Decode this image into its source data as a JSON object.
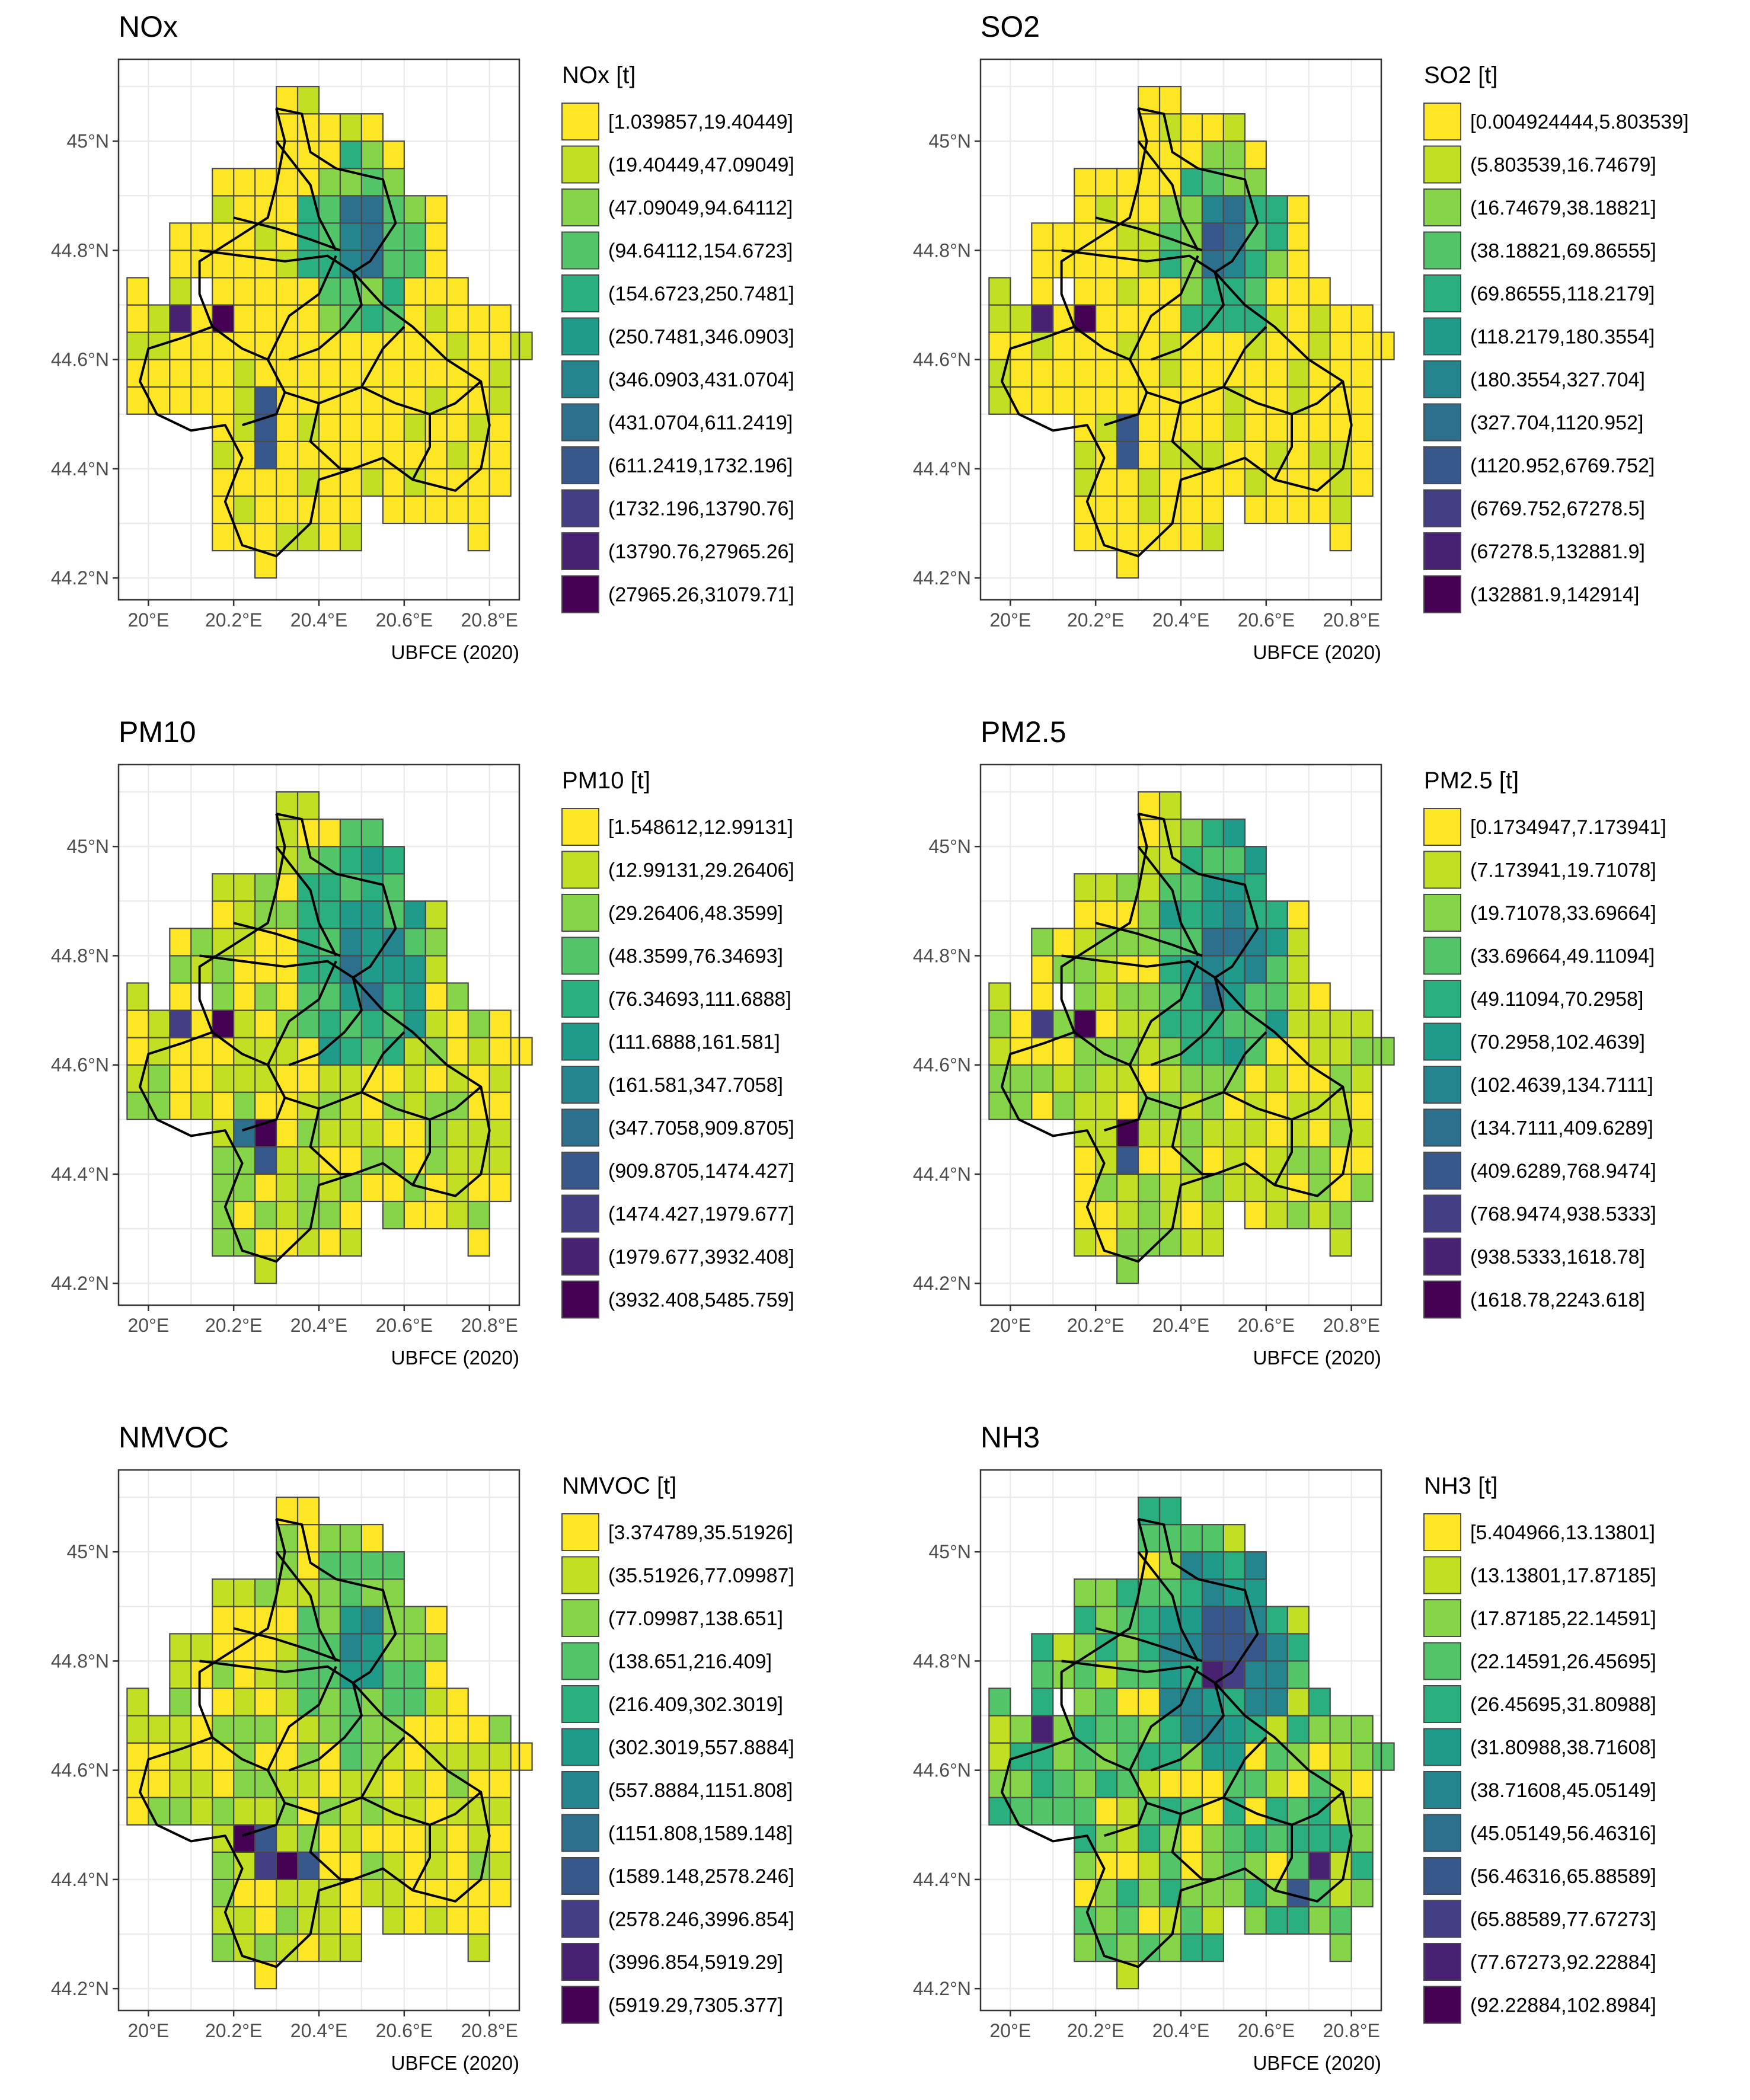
{
  "caption": "UBFCE (2020)",
  "axes": {
    "x_ticks": [
      "20°E",
      "20.2°E",
      "20.4°E",
      "20.6°E",
      "20.8°E"
    ],
    "y_ticks": [
      "45°N",
      "44.8°N",
      "44.6°N",
      "44.4°N",
      "44.2°N"
    ],
    "x_tick_values": [
      20.0,
      20.2,
      20.4,
      20.6,
      20.8
    ],
    "y_tick_values": [
      45.0,
      44.8,
      44.6,
      44.4,
      44.2
    ],
    "lon_range": [
      19.93,
      20.87
    ],
    "lat_range": [
      44.16,
      45.15
    ],
    "grid": true
  },
  "colors": [
    "#fde725",
    "#c2df23",
    "#86d549",
    "#52c569",
    "#2ab07f",
    "#1e9b8a",
    "#25858e",
    "#2d708e",
    "#38588c",
    "#433e85",
    "#482173",
    "#440154"
  ],
  "panels": [
    {
      "id": "nox",
      "title": "NOx",
      "legend_title": "NOx [t]",
      "legend": [
        "[1.039857,19.40449]",
        "(19.40449,47.09049]",
        "(47.09049,94.64112]",
        "(94.64112,154.6723]",
        "(154.6723,250.7481]",
        "(250.7481,346.0903]",
        "(346.0903,431.0704]",
        "(431.0704,611.2419]",
        "(611.2419,1732.196]",
        "(1732.196,13790.76]",
        "(13790.76,27965.26]",
        "(27965.26,31079.71]"
      ]
    },
    {
      "id": "so2",
      "title": "SO2",
      "legend_title": "SO2 [t]",
      "legend": [
        "[0.004924444,5.803539]",
        "(5.803539,16.74679]",
        "(16.74679,38.18821]",
        "(38.18821,69.86555]",
        "(69.86555,118.2179]",
        "(118.2179,180.3554]",
        "(180.3554,327.704]",
        "(327.704,1120.952]",
        "(1120.952,6769.752]",
        "(6769.752,67278.5]",
        "(67278.5,132881.9]",
        "(132881.9,142914]"
      ]
    },
    {
      "id": "pm10",
      "title": "PM10",
      "legend_title": "PM10 [t]",
      "legend": [
        "[1.548612,12.99131]",
        "(12.99131,29.26406]",
        "(29.26406,48.3599]",
        "(48.3599,76.34693]",
        "(76.34693,111.6888]",
        "(111.6888,161.581]",
        "(161.581,347.7058]",
        "(347.7058,909.8705]",
        "(909.8705,1474.427]",
        "(1474.427,1979.677]",
        "(1979.677,3932.408]",
        "(3932.408,5485.759]"
      ]
    },
    {
      "id": "pm25",
      "title": "PM2.5",
      "legend_title": "PM2.5 [t]",
      "legend": [
        "[0.1734947,7.173941]",
        "(7.173941,19.71078]",
        "(19.71078,33.69664]",
        "(33.69664,49.11094]",
        "(49.11094,70.2958]",
        "(70.2958,102.4639]",
        "(102.4639,134.7111]",
        "(134.7111,409.6289]",
        "(409.6289,768.9474]",
        "(768.9474,938.5333]",
        "(938.5333,1618.78]",
        "(1618.78,2243.618]"
      ]
    },
    {
      "id": "nmvoc",
      "title": "NMVOC",
      "legend_title": "NMVOC [t]",
      "legend": [
        "[3.374789,35.51926]",
        "(35.51926,77.09987]",
        "(77.09987,138.651]",
        "(138.651,216.409]",
        "(216.409,302.3019]",
        "(302.3019,557.8884]",
        "(557.8884,1151.808]",
        "(1151.808,1589.148]",
        "(1589.148,2578.246]",
        "(2578.246,3996.854]",
        "(3996.854,5919.29]",
        "(5919.29,7305.377]"
      ]
    },
    {
      "id": "nh3",
      "title": "NH3",
      "legend_title": "NH3 [t]",
      "legend": [
        "[5.404966,13.13801]",
        "(13.13801,17.87185]",
        "(17.87185,22.14591]",
        "(22.14591,26.45695]",
        "(26.45695,31.80988]",
        "(31.80988,38.71608]",
        "(38.71608,45.05149]",
        "(45.05149,56.46316]",
        "(56.46316,65.88589]",
        "(65.88589,77.67273]",
        "(77.67273,92.22884]",
        "(92.22884,102.8984]"
      ]
    }
  ]
}
